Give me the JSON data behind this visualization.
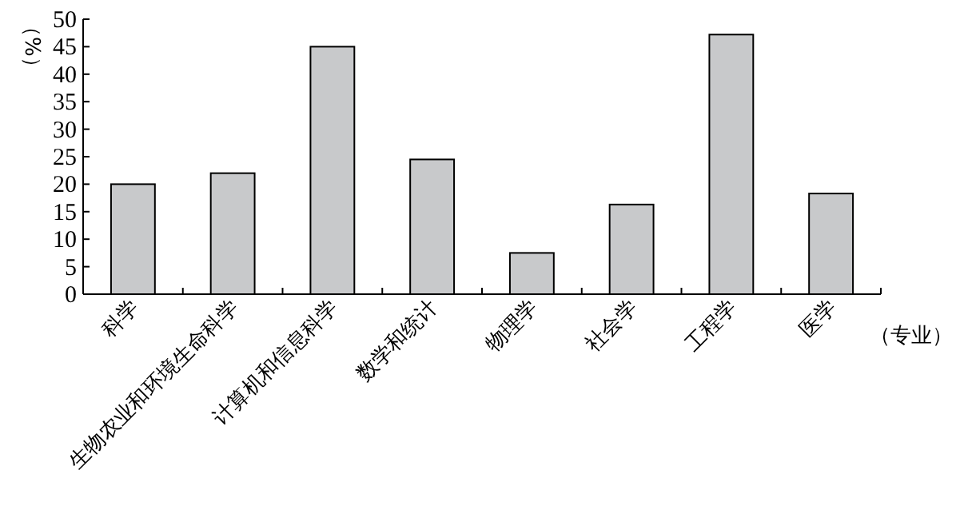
{
  "chart_data": {
    "type": "bar",
    "ylabel": "（%）",
    "xlabel": "（专业）",
    "categories": [
      "科学",
      "生物农业和环境生命科学",
      "计算机和信息科学",
      "数学和统计",
      "物理学",
      "社会学",
      "工程学",
      "医学"
    ],
    "values": [
      20,
      22,
      45,
      24.5,
      7.5,
      16.3,
      47.2,
      18.3
    ],
    "color": "#c8c9cb",
    "ylim": [
      0,
      50
    ],
    "yticks": [
      0,
      5,
      10,
      15,
      20,
      25,
      30,
      35,
      40,
      45,
      50
    ],
    "grid": false
  }
}
